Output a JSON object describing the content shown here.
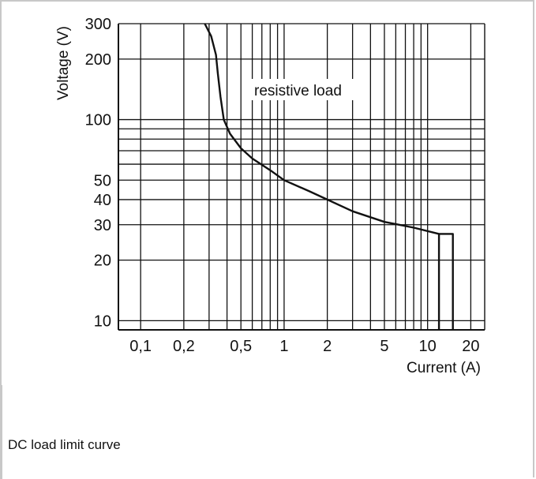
{
  "caption": "DC load limit curve",
  "chart_data": {
    "type": "line",
    "title": "",
    "xlabel": "Current (A)",
    "ylabel": "Voltage (V)",
    "xscale": "log",
    "yscale": "log",
    "xlim": [
      0.07,
      25
    ],
    "ylim": [
      9,
      300
    ],
    "grid": true,
    "x_ticks": [
      {
        "value": 0.1,
        "label": "0,1"
      },
      {
        "value": 0.2,
        "label": "0,2"
      },
      {
        "value": 0.5,
        "label": "0,5"
      },
      {
        "value": 1,
        "label": "1"
      },
      {
        "value": 2,
        "label": "2"
      },
      {
        "value": 5,
        "label": "5"
      },
      {
        "value": 10,
        "label": "10"
      },
      {
        "value": 20,
        "label": "20"
      }
    ],
    "y_ticks": [
      {
        "value": 10,
        "label": "10"
      },
      {
        "value": 20,
        "label": "20"
      },
      {
        "value": 30,
        "label": "30"
      },
      {
        "value": 40,
        "label": "40"
      },
      {
        "value": 50,
        "label": "50"
      },
      {
        "value": 100,
        "label": "100"
      },
      {
        "value": 200,
        "label": "200"
      },
      {
        "value": 300,
        "label": "300"
      }
    ],
    "x_gridlines": [
      0.1,
      0.2,
      0.3,
      0.4,
      0.5,
      0.6,
      0.7,
      0.8,
      0.9,
      1,
      2,
      3,
      4,
      5,
      6,
      7,
      8,
      9,
      10,
      20
    ],
    "y_gridlines": [
      10,
      20,
      30,
      40,
      50,
      60,
      70,
      80,
      90,
      100,
      200,
      300
    ],
    "annotation": "resistive load",
    "series": [
      {
        "x": [
          0.28,
          0.31,
          0.335,
          0.345,
          0.36,
          0.38,
          0.42,
          0.5,
          0.6,
          0.8,
          1.0,
          1.5,
          2.0,
          3.0,
          5.0,
          8.0,
          12.0,
          15.0,
          15.0
        ],
        "y": [
          300,
          260,
          210,
          170,
          130,
          100,
          85,
          72,
          64,
          56,
          50,
          44,
          40,
          35,
          31,
          29,
          27,
          27,
          9
        ]
      },
      {
        "x": [
          12.0,
          12.0
        ],
        "y": [
          27,
          9
        ]
      }
    ]
  }
}
